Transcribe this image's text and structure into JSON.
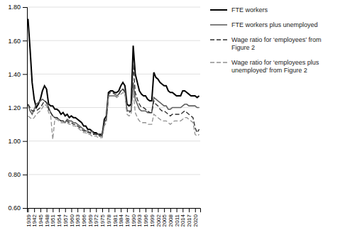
{
  "chart_data": {
    "type": "line",
    "x": [
      1939,
      1940,
      1941,
      1942,
      1943,
      1944,
      1945,
      1946,
      1947,
      1948,
      1949,
      1950,
      1951,
      1952,
      1953,
      1954,
      1955,
      1956,
      1957,
      1958,
      1959,
      1960,
      1961,
      1962,
      1963,
      1964,
      1965,
      1966,
      1967,
      1968,
      1969,
      1970,
      1971,
      1972,
      1973,
      1974,
      1975,
      1976,
      1977,
      1978,
      1979,
      1980,
      1981,
      1982,
      1983,
      1984,
      1985,
      1986,
      1987,
      1988,
      1989,
      1990,
      1991,
      1992,
      1993,
      1994,
      1995,
      1996,
      1997,
      1998,
      1999,
      2000,
      2001,
      2002,
      2003,
      2004,
      2005,
      2006,
      2007,
      2008,
      2009,
      2010,
      2011,
      2012,
      2013,
      2014,
      2015,
      2016,
      2017,
      2018,
      2019,
      2020,
      2021,
      2022
    ],
    "series": [
      {
        "name": "FTE workers",
        "color": "#000000",
        "line_style": "solid",
        "values": [
          1.73,
          1.55,
          1.35,
          1.25,
          1.2,
          1.22,
          1.25,
          1.3,
          1.33,
          1.31,
          1.22,
          1.21,
          1.21,
          1.19,
          1.19,
          1.18,
          1.16,
          1.17,
          1.15,
          1.16,
          1.14,
          1.15,
          1.14,
          1.14,
          1.13,
          1.12,
          1.11,
          1.09,
          1.09,
          1.07,
          1.07,
          1.06,
          1.05,
          1.05,
          1.04,
          1.04,
          1.04,
          1.13,
          1.15,
          1.29,
          1.3,
          1.3,
          1.29,
          1.29,
          1.3,
          1.33,
          1.35,
          1.33,
          1.22,
          1.21,
          1.22,
          1.57,
          1.4,
          1.35,
          1.3,
          1.28,
          1.27,
          1.27,
          1.25,
          1.24,
          1.24,
          1.41,
          1.38,
          1.37,
          1.35,
          1.34,
          1.33,
          1.33,
          1.3,
          1.29,
          1.29,
          1.28,
          1.27,
          1.27,
          1.27,
          1.3,
          1.3,
          1.29,
          1.28,
          1.27,
          1.27,
          1.27,
          1.26,
          1.27
        ]
      },
      {
        "name": "FTE workers plus unemployed",
        "color": "#606060",
        "line_style": "solid",
        "values": [
          1.22,
          1.18,
          1.16,
          1.19,
          1.22,
          1.23,
          1.24,
          1.25,
          1.24,
          1.23,
          1.2,
          1.17,
          1.15,
          1.14,
          1.14,
          1.13,
          1.12,
          1.12,
          1.11,
          1.13,
          1.12,
          1.12,
          1.11,
          1.11,
          1.1,
          1.09,
          1.08,
          1.07,
          1.06,
          1.06,
          1.05,
          1.06,
          1.04,
          1.04,
          1.04,
          1.03,
          1.04,
          1.11,
          1.13,
          1.27,
          1.27,
          1.27,
          1.27,
          1.27,
          1.28,
          1.3,
          1.31,
          1.3,
          1.18,
          1.18,
          1.18,
          1.35,
          1.25,
          1.22,
          1.19,
          1.18,
          1.18,
          1.18,
          1.17,
          1.17,
          1.17,
          1.26,
          1.25,
          1.24,
          1.23,
          1.22,
          1.21,
          1.21,
          1.19,
          1.19,
          1.2,
          1.2,
          1.2,
          1.2,
          1.2,
          1.21,
          1.22,
          1.22,
          1.21,
          1.21,
          1.21,
          1.21,
          1.2,
          1.2
        ]
      },
      {
        "name": "Wage ratio for ‘employees’ from\nFigure 2",
        "color": "#303030",
        "line_style": "dashed",
        "values": [
          1.22,
          1.2,
          1.18,
          1.18,
          1.18,
          1.19,
          1.2,
          1.22,
          1.24,
          1.23,
          1.19,
          1.17,
          1.15,
          1.14,
          1.14,
          1.13,
          1.12,
          1.12,
          1.12,
          1.12,
          1.11,
          1.11,
          1.1,
          1.1,
          1.09,
          1.08,
          1.07,
          1.06,
          1.06,
          1.05,
          1.05,
          1.04,
          1.04,
          1.04,
          1.03,
          1.03,
          1.03,
          1.11,
          1.13,
          1.28,
          1.29,
          1.29,
          1.28,
          1.28,
          1.28,
          1.3,
          1.31,
          1.29,
          1.18,
          1.17,
          1.18,
          1.46,
          1.29,
          1.25,
          1.22,
          1.2,
          1.2,
          1.19,
          1.18,
          1.17,
          1.17,
          1.24,
          1.22,
          1.21,
          1.19,
          1.18,
          1.18,
          1.17,
          1.16,
          1.15,
          1.16,
          1.16,
          1.16,
          1.16,
          1.16,
          1.17,
          1.18,
          1.17,
          1.16,
          1.15,
          1.14,
          1.08,
          1.05,
          1.07
        ]
      },
      {
        "name": "Wage ratio for ‘employees plus\nunemployed’ from Figure 2",
        "color": "#909090",
        "line_style": "dashed",
        "values": [
          1.15,
          1.14,
          1.13,
          1.14,
          1.16,
          1.17,
          1.18,
          1.2,
          1.22,
          1.21,
          1.17,
          1.15,
          1.01,
          1.13,
          1.13,
          1.12,
          1.11,
          1.11,
          1.11,
          1.11,
          1.1,
          1.1,
          1.09,
          1.09,
          1.08,
          1.07,
          1.06,
          1.05,
          1.05,
          1.04,
          1.04,
          1.03,
          1.03,
          1.03,
          1.02,
          1.02,
          1.02,
          1.09,
          1.11,
          1.26,
          1.27,
          1.27,
          1.27,
          1.26,
          1.27,
          1.28,
          1.29,
          1.28,
          1.16,
          1.15,
          1.16,
          1.3,
          1.17,
          1.14,
          1.12,
          1.11,
          1.11,
          1.11,
          1.1,
          1.1,
          1.1,
          1.16,
          1.15,
          1.14,
          1.13,
          1.12,
          1.12,
          1.12,
          1.11,
          1.1,
          1.11,
          1.12,
          1.12,
          1.12,
          1.12,
          1.13,
          1.14,
          1.14,
          1.13,
          1.12,
          1.11,
          1.04,
          1.03,
          1.04
        ]
      }
    ],
    "xlim": [
      1938.5,
      2022.5
    ],
    "xticks": [
      1939,
      1942,
      1945,
      1948,
      1951,
      1954,
      1957,
      1960,
      1963,
      1966,
      1969,
      1972,
      1975,
      1978,
      1981,
      1984,
      1987,
      1990,
      1993,
      1996,
      1999,
      2002,
      2005,
      2008,
      2011,
      2014,
      2017,
      2020
    ],
    "ylim": [
      0.6,
      1.8
    ],
    "yticks": [
      {
        "value": 0.6,
        "label": "0.60"
      },
      {
        "value": 0.8,
        "label": "0.80"
      },
      {
        "value": 1.0,
        "label": "1.00"
      },
      {
        "value": 1.2,
        "label": "1.20"
      },
      {
        "value": 1.4,
        "label": "1.40"
      },
      {
        "value": 1.6,
        "label": "1.60"
      },
      {
        "value": 1.8,
        "label": "1.80"
      }
    ],
    "grid": "y",
    "legend": "right"
  }
}
